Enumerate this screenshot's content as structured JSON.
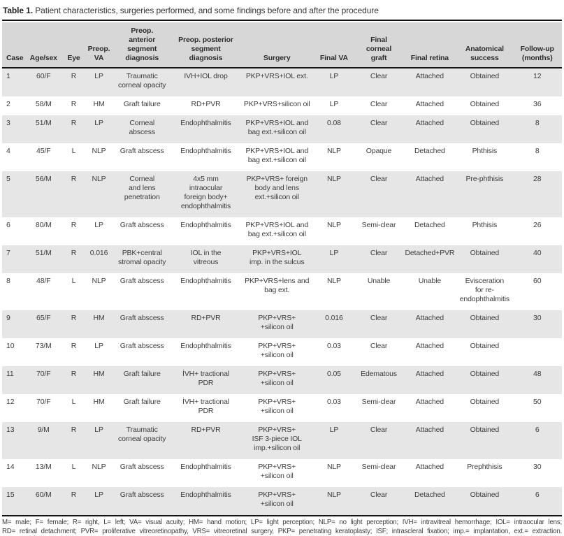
{
  "title": {
    "prefix": "Table 1.",
    "text": " Patient characteristics, surgeries performed, and some findings before and after the procedure"
  },
  "colors": {
    "header_bg": "#d7d7d7",
    "stripe_bg": "#e6e6e6",
    "rule": "#141414",
    "text": "#3d3d3d"
  },
  "table": {
    "columns": [
      "Case",
      "Age/sex",
      "Eye",
      "Preop.\nVA",
      "Preop.\nanterior\nsegment\ndiagnosis",
      "Preop. posterior\nsegment\ndiagnosis",
      "Surgery",
      "Final VA",
      "Final\ncorneal\ngraft",
      "Final retina",
      "Anatomical\nsuccess",
      "Follow-up\n(months)"
    ],
    "rows": [
      [
        "1",
        "60/F",
        "R",
        "LP",
        "Traumatic\ncorneal opacity",
        "IVH+IOL drop",
        "PKP+VRS+IOL ext.",
        "LP",
        "Clear",
        "Attached",
        "Obtained",
        "12"
      ],
      [
        "2",
        "58/M",
        "R",
        "HM",
        "Graft failure",
        "RD+PVR",
        "PKP+VRS+silicon oil",
        "LP",
        "Clear",
        "Attached",
        "Obtained",
        "36"
      ],
      [
        "3",
        "51/M",
        "R",
        "LP",
        "Corneal\nabscess",
        "Endophthalmitis",
        "PKP+VRS+IOL and\nbag ext.+silicon oil",
        "0.08",
        "Clear",
        "Attached",
        "Obtained",
        "8"
      ],
      [
        "4",
        "45/F",
        "L",
        "NLP",
        "Graft abscess",
        "Endophthalmitis",
        "PKP+VRS+IOL and\nbag ext.+silicon oil",
        "NLP",
        "Opaque",
        "Detached",
        "Phthisis",
        "8"
      ],
      [
        "5",
        "56/M",
        "R",
        "NLP",
        "Corneal\nand lens\npenetration",
        "4x5 mm\nintraocular\nforeign body+\nendophthalmitis",
        "PKP+VRS+ foreign\nbody and lens\next.+silicon oil",
        "NLP",
        "Clear",
        "Attached",
        "Pre-phthisis",
        "28"
      ],
      [
        "6",
        "80/M",
        "R",
        "LP",
        "Graft abscess",
        "Endophthalmitis",
        "PKP+VRS+IOL and\nbag ext.+silicon oil",
        "NLP",
        "Semi-clear",
        "Detached",
        "Phthisis",
        "26"
      ],
      [
        "7",
        "51/M",
        "R",
        "0.016",
        "PBK+central\nstromal opacity",
        "IOL in the\nvitreous",
        "PKP+VRS+IOL\nimp. in the sulcus",
        "LP",
        "Clear",
        "Detached+PVR",
        "Obtained",
        "40"
      ],
      [
        "8",
        "48/F",
        "L",
        "NLP",
        "Graft abscess",
        "Endophthalmitis",
        "PKP+VRS+lens and\nbag ext.",
        "NLP",
        "Unable",
        "Unable",
        "Evisceration\nfor re-\nendophthalmitis",
        "60"
      ],
      [
        "9",
        "65/F",
        "R",
        "HM",
        "Graft abscess",
        "RD+PVR",
        "PKP+VRS+\n+silicon oil",
        "0.016",
        "Clear",
        "Attached",
        "Obtained",
        "30"
      ],
      [
        "10",
        "73/M",
        "R",
        "LP",
        "Graft abscess",
        "Endophthalmitis",
        "PKP+VRS+\n+silicon oil",
        "0.03",
        "Clear",
        "Attached",
        "Obtained",
        ""
      ],
      [
        "11",
        "70/F",
        "R",
        "HM",
        "Graft failure",
        "İVH+ tractional\nPDR",
        "PKP+VRS+\n+silicon oil",
        "0.05",
        "Edematous",
        "Attached",
        "Obtained",
        "48"
      ],
      [
        "12",
        "70/F",
        "L",
        "HM",
        "Graft failure",
        "İVH+ tractional\nPDR",
        "PKP+VRS+\n+silicon oil",
        "0.03",
        "Semi-clear",
        "Attached",
        "Obtained",
        "50"
      ],
      [
        "13",
        "9/M",
        "R",
        "LP",
        "Traumatic\ncorneal opacity",
        "RD+PVR",
        "PKP+VRS+\nISF 3-piece IOL\nimp.+silicon oil",
        "LP",
        "Clear",
        "Attached",
        "Obtained",
        "6"
      ],
      [
        "14",
        "13/M",
        "L",
        "NLP",
        "Graft abscess",
        "Endophthalmitis",
        "PKP+VRS+\n+silicon oil",
        "NLP",
        "Semi-clear",
        "Attached",
        "Prephthisis",
        "30"
      ],
      [
        "15",
        "60/M",
        "R",
        "LP",
        "Graft abscess",
        "Endophthalmitis",
        "PKP+VRS+\n+silicon oil",
        "NLP",
        "Clear",
        "Detached",
        "Obtained",
        "6"
      ]
    ]
  },
  "footnote": {
    "line1": "M= male; F= female; R= right, L= left; VA= visual acuity; HM= hand motion; LP= light perception; NLP= no light perception; IVH= intravitreal hemorrhage; IOL= intraocular lens;",
    "line2": "RD= retinal detachment; PVR= proliferative vitreoretinopathy, VRS= vitreoretinal surgery, PKP= penetrating keratoplasty; ISF; intrascleral fixation; imp.= implantation, ext.= extraction."
  }
}
